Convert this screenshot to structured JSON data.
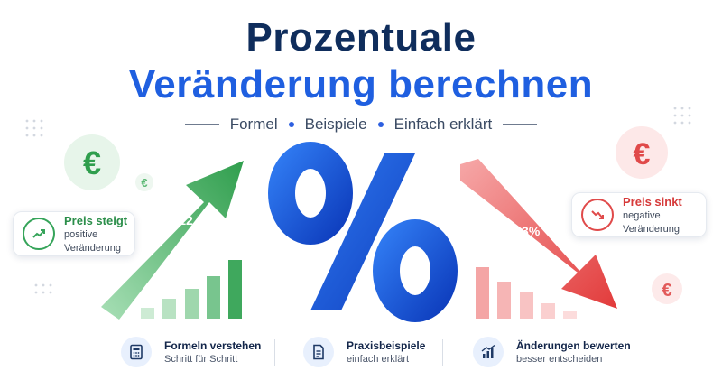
{
  "header": {
    "title_line1": "Prozentuale",
    "title_line2": "Veränderung berechnen",
    "subtitle": [
      "Formel",
      "Beispiele",
      "Einfach erklärt"
    ]
  },
  "graphics": {
    "percent_symbol": "%",
    "currency_symbol": "€",
    "up_change": "+12,5%",
    "down_change": "-8,3%"
  },
  "badges": {
    "up": {
      "title": "Preis steigt",
      "subtitle": "positive Veränderung",
      "icon": "trend-up-icon"
    },
    "down": {
      "title": "Preis sinkt",
      "subtitle": "negative Veränderung",
      "icon": "trend-down-icon"
    }
  },
  "features": [
    {
      "title": "Formeln verstehen",
      "subtitle": "Schritt für Schritt",
      "icon": "calculator-icon"
    },
    {
      "title": "Praxisbeispiele",
      "subtitle": "einfach erklärt",
      "icon": "document-icon"
    },
    {
      "title": "Änderungen bewerten",
      "subtitle": "besser entscheiden",
      "icon": "bar-chart-icon"
    }
  ],
  "colors": {
    "navy": "#0f2d5c",
    "blue": "#1f5fe0",
    "green": "#36a45a",
    "red": "#e04a4a"
  }
}
